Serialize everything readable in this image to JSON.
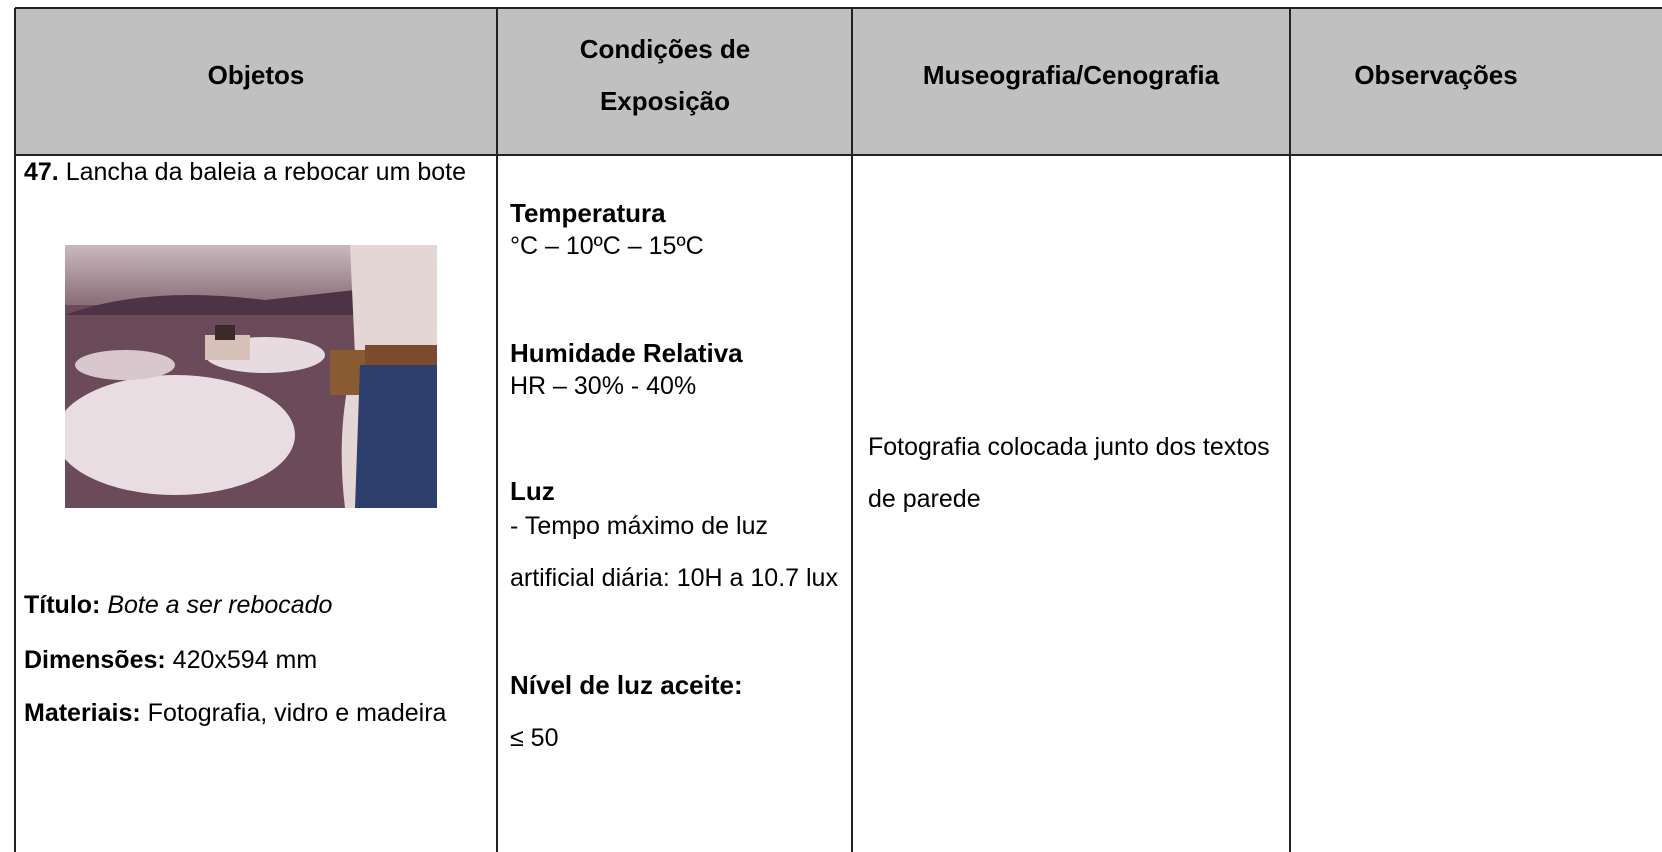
{
  "table": {
    "headers": [
      "Objetos",
      "Condições de Exposição",
      "Museografia/Cenografia",
      "Observações"
    ],
    "row": {
      "object": {
        "number": "47.",
        "name": "Lancha da baleia a rebocar um bote",
        "fields": [
          {
            "label": "Título:",
            "value": "Bote a ser rebocado"
          },
          {
            "label": "Dimensões:",
            "value": "420x594 mm"
          },
          {
            "label": "Materiais:",
            "value": "Fotografia, vidro e madeira"
          }
        ]
      },
      "conditions": [
        {
          "label": "Temperatura",
          "value": "°C – 10ºC – 15ºC"
        },
        {
          "label": "Humidade Relativa",
          "value": "HR – 30% - 40%"
        },
        {
          "label": "Luz",
          "value": "- Tempo máximo de luz artificial diária: 10H  a 10.7 lux"
        },
        {
          "label": "Nível de luz aceite:",
          "value": "≤ 50"
        }
      ],
      "museography": "Fotografia colocada junto dos textos de parede",
      "observations": ""
    }
  }
}
